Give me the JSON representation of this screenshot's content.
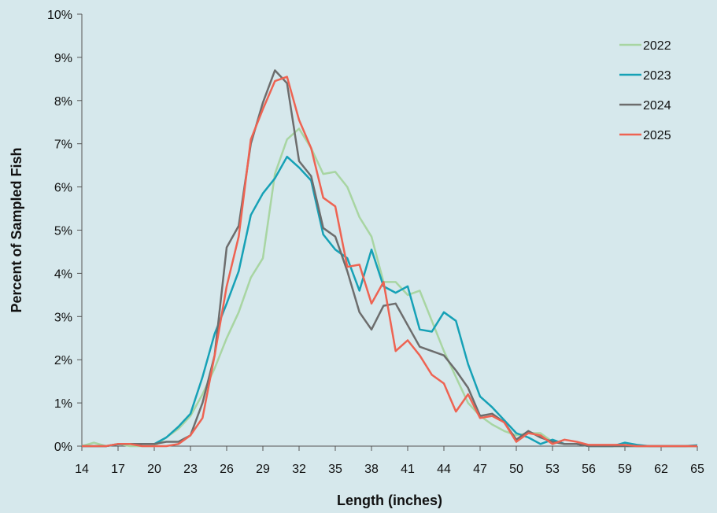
{
  "chart_data": {
    "type": "line",
    "xlabel": "Length (inches)",
    "ylabel": "Percent of Sampled Fish",
    "xlim": [
      14,
      65
    ],
    "ylim": [
      0,
      10
    ],
    "x_ticks": [
      "14",
      "17",
      "20",
      "23",
      "26",
      "29",
      "32",
      "35",
      "38",
      "41",
      "44",
      "47",
      "50",
      "53",
      "56",
      "59",
      "62",
      "65"
    ],
    "y_ticks": [
      "0%",
      "1%",
      "2%",
      "3%",
      "4%",
      "5%",
      "6%",
      "7%",
      "8%",
      "9%",
      "10%"
    ],
    "legend_position": "top-right",
    "x": [
      14,
      15,
      16,
      17,
      18,
      19,
      20,
      21,
      22,
      23,
      24,
      25,
      26,
      27,
      28,
      29,
      30,
      31,
      32,
      33,
      34,
      35,
      36,
      37,
      38,
      39,
      40,
      41,
      42,
      43,
      44,
      45,
      46,
      47,
      48,
      49,
      50,
      51,
      52,
      53,
      54,
      55,
      56,
      57,
      58,
      59,
      60,
      61,
      62,
      63,
      64,
      65
    ],
    "series": [
      {
        "name": "2022",
        "color": "#a8d5a2",
        "values": [
          0,
          0.08,
          0,
          0.05,
          0,
          0,
          0,
          0.2,
          0.4,
          0.7,
          1.2,
          1.8,
          2.5,
          3.1,
          3.9,
          4.35,
          6.3,
          7.1,
          7.35,
          6.9,
          6.3,
          6.35,
          6.0,
          5.3,
          4.85,
          3.8,
          3.8,
          3.5,
          3.6,
          2.9,
          2.2,
          1.6,
          1.0,
          0.7,
          0.5,
          0.35,
          0.25,
          0.3,
          0.3,
          0.1,
          0.05,
          0.05,
          0.02,
          0,
          0,
          0,
          0,
          0,
          0,
          0,
          0,
          0
        ]
      },
      {
        "name": "2023",
        "color": "#16a1b6",
        "values": [
          0,
          0,
          0,
          0.04,
          0.05,
          0.05,
          0.05,
          0.2,
          0.45,
          0.75,
          1.6,
          2.6,
          3.3,
          4.05,
          5.35,
          5.85,
          6.2,
          6.7,
          6.45,
          6.15,
          4.9,
          4.55,
          4.35,
          3.6,
          4.55,
          3.7,
          3.55,
          3.7,
          2.7,
          2.65,
          3.1,
          2.9,
          1.9,
          1.15,
          0.9,
          0.6,
          0.3,
          0.2,
          0.05,
          0.15,
          0.05,
          0.05,
          0,
          0,
          0,
          0.08,
          0.03,
          0,
          0,
          0,
          0,
          0.02
        ]
      },
      {
        "name": "2024",
        "color": "#6d6d6d",
        "values": [
          0,
          0,
          0,
          0.05,
          0.05,
          0.05,
          0.05,
          0.1,
          0.1,
          0.25,
          1.0,
          2.1,
          4.6,
          5.1,
          7.0,
          7.95,
          8.7,
          8.4,
          6.6,
          6.25,
          5.05,
          4.85,
          4.05,
          3.1,
          2.7,
          3.25,
          3.3,
          2.8,
          2.3,
          2.2,
          2.1,
          1.75,
          1.35,
          0.7,
          0.75,
          0.55,
          0.15,
          0.35,
          0.2,
          0.1,
          0.05,
          0.05,
          0,
          0,
          0,
          0,
          0,
          0,
          0,
          0,
          0,
          0
        ]
      },
      {
        "name": "2025",
        "color": "#ee6352",
        "values": [
          0,
          0,
          0,
          0.05,
          0.05,
          0,
          0,
          0,
          0.05,
          0.25,
          0.65,
          2.1,
          3.7,
          4.85,
          7.1,
          7.8,
          8.45,
          8.55,
          7.55,
          6.9,
          5.75,
          5.55,
          4.15,
          4.2,
          3.3,
          3.8,
          2.2,
          2.45,
          2.1,
          1.65,
          1.45,
          0.8,
          1.2,
          0.65,
          0.7,
          0.55,
          0.1,
          0.3,
          0.25,
          0.05,
          0.15,
          0.1,
          0.03,
          0.03,
          0.03,
          0.03,
          0,
          0,
          0,
          0,
          0,
          0
        ]
      }
    ]
  }
}
